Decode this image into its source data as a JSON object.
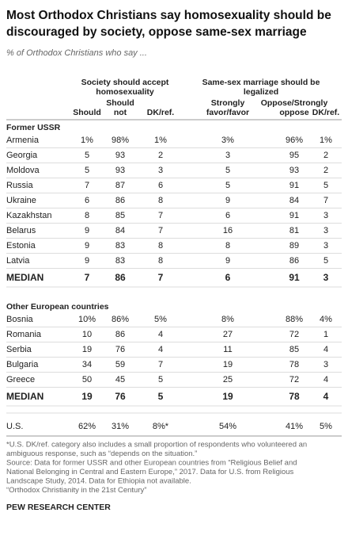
{
  "header": {
    "title": [
      "Most Orthodox Christians say homosexuality should be",
      "discouraged by society, oppose same-sex marriage"
    ],
    "subtitle": "% of Orthodox Christians who say ..."
  },
  "columns": {
    "groups": [
      [
        "Society should accept",
        "homosexuality"
      ],
      [
        "Same-sex marriage should be",
        "legalized"
      ]
    ],
    "headers": [
      [
        "Should"
      ],
      [
        "Should",
        "not"
      ],
      [
        "DK/ref."
      ],
      [
        "Strongly",
        "favor/favor"
      ],
      [
        "Oppose/Strongly",
        "oppose"
      ],
      [
        "DK/ref."
      ]
    ]
  },
  "groups": [
    {
      "title": "Former USSR",
      "rows": [
        [
          "Armenia",
          "1%",
          "98%",
          "1%",
          "3%",
          "96%",
          "1%"
        ],
        [
          "Georgia",
          "5",
          "93",
          "2",
          "3",
          "95",
          "2"
        ],
        [
          "Moldova",
          "5",
          "93",
          "3",
          "5",
          "93",
          "2"
        ],
        [
          "Russia",
          "7",
          "87",
          "6",
          "5",
          "91",
          "5"
        ],
        [
          "Ukraine",
          "6",
          "86",
          "8",
          "9",
          "84",
          "7"
        ],
        [
          "Kazakhstan",
          "8",
          "85",
          "7",
          "6",
          "91",
          "3"
        ],
        [
          "Belarus",
          "9",
          "84",
          "7",
          "16",
          "81",
          "3"
        ],
        [
          "Estonia",
          "9",
          "83",
          "8",
          "8",
          "89",
          "3"
        ],
        [
          "Latvia",
          "9",
          "83",
          "8",
          "9",
          "86",
          "5"
        ]
      ],
      "median": [
        "MEDIAN",
        "7",
        "86",
        "7",
        "6",
        "91",
        "3"
      ]
    },
    {
      "title": "Other European countries",
      "rows": [
        [
          "Bosnia",
          "10%",
          "86%",
          "5%",
          "8%",
          "88%",
          "4%"
        ],
        [
          "Romania",
          "10",
          "86",
          "4",
          "27",
          "72",
          "1"
        ],
        [
          "Serbia",
          "19",
          "76",
          "4",
          "11",
          "85",
          "4"
        ],
        [
          "Bulgaria",
          "34",
          "59",
          "7",
          "19",
          "78",
          "3"
        ],
        [
          "Greece",
          "50",
          "45",
          "5",
          "25",
          "72",
          "4"
        ]
      ],
      "median": [
        "MEDIAN",
        "19",
        "76",
        "5",
        "19",
        "78",
        "4"
      ]
    }
  ],
  "us": [
    "U.S.",
    "62%",
    "31%",
    "8%*",
    "54%",
    "41%",
    "5%"
  ],
  "footnotes": [
    "*U.S. DK/ref. category also includes a small proportion of respondents who volunteered an",
    "ambiguous response, such as “depends on the situation.”",
    "Source: Data for former USSR and other European countries from “Religious Belief and",
    "National Belonging in Central and Eastern Europe,” 2017. Data for U.S. from Religious",
    "Landscape Study, 2014. Data for Ethiopia not available.",
    "“Orthodox Christianity in the 21st Century”"
  ],
  "source": "PEW RESEARCH CENTER"
}
